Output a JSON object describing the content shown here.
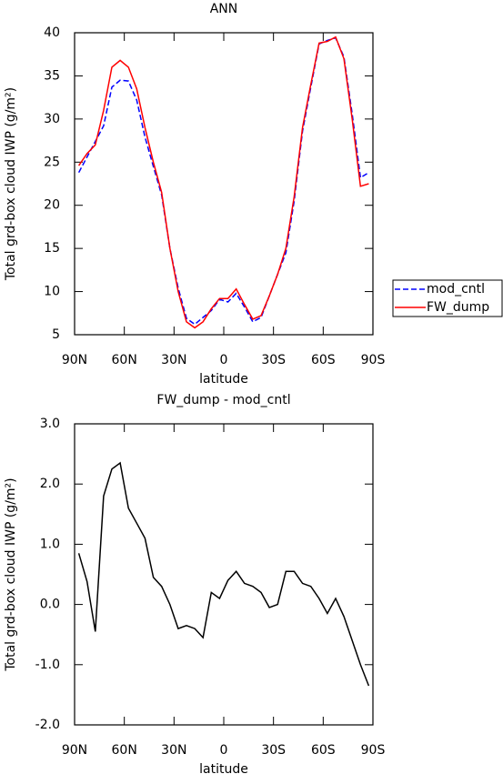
{
  "chart_data": [
    {
      "type": "line",
      "title": "ANN",
      "xlabel": "latitude",
      "ylabel": "Total grd-box cloud IWP (g/m²)",
      "x": [
        87.5,
        82.5,
        77.5,
        72.5,
        67.5,
        62.5,
        57.5,
        52.5,
        47.5,
        42.5,
        37.5,
        32.5,
        27.5,
        22.5,
        17.5,
        12.5,
        7.5,
        2.5,
        -2.5,
        -7.5,
        -12.5,
        -17.5,
        -22.5,
        -27.5,
        -32.5,
        -37.5,
        -42.5,
        -47.5,
        -52.5,
        -57.5,
        -62.5,
        -67.5,
        -72.5,
        -77.5,
        -82.5,
        -87.5
      ],
      "series": [
        {
          "name": "mod_cntl",
          "color": "#0000ff",
          "linestyle": "dashed",
          "values": [
            23.8,
            25.6,
            27.4,
            29.2,
            33.7,
            34.5,
            34.4,
            32.2,
            27.9,
            24.5,
            21.2,
            15.0,
            10.4,
            6.9,
            6.2,
            7.0,
            7.8,
            9.1,
            8.8,
            9.8,
            8.2,
            6.5,
            7.0,
            9.5,
            12.0,
            14.5,
            20.5,
            28.6,
            33.7,
            38.7,
            39.1,
            39.4,
            37.2,
            30.6,
            23.2,
            23.8
          ]
        },
        {
          "name": "FW_dump",
          "color": "#ff0000",
          "linestyle": "solid",
          "values": [
            24.6,
            26.0,
            27.0,
            31.0,
            36.0,
            36.8,
            36.0,
            33.5,
            29.0,
            25.0,
            21.5,
            15.0,
            10.0,
            6.5,
            5.8,
            6.5,
            8.0,
            9.2,
            9.2,
            10.3,
            8.5,
            6.8,
            7.2,
            9.5,
            12.0,
            15.0,
            21.0,
            29.0,
            34.0,
            38.8,
            39.0,
            39.5,
            37.0,
            30.0,
            22.2,
            22.5
          ]
        }
      ],
      "xlim": [
        90,
        -90
      ],
      "xticks": [
        {
          "value": 90,
          "label": "90N"
        },
        {
          "value": 60,
          "label": "60N"
        },
        {
          "value": 30,
          "label": "30N"
        },
        0,
        {
          "value": -30,
          "label": "30S"
        },
        {
          "value": -60,
          "label": "60S"
        },
        {
          "value": -90,
          "label": "90S"
        }
      ],
      "ylim": [
        5,
        40
      ],
      "yticks": [
        5,
        10,
        15,
        20,
        25,
        30,
        35,
        40
      ],
      "legend": "right"
    },
    {
      "type": "line",
      "title": "FW_dump - mod_cntl",
      "xlabel": "latitude",
      "ylabel": "Total grd-box cloud IWP (g/m²)",
      "x": [
        87.5,
        82.5,
        77.5,
        72.5,
        67.5,
        62.5,
        57.5,
        52.5,
        47.5,
        42.5,
        37.5,
        32.5,
        27.5,
        22.5,
        17.5,
        12.5,
        7.5,
        2.5,
        -2.5,
        -7.5,
        -12.5,
        -17.5,
        -22.5,
        -27.5,
        -32.5,
        -37.5,
        -42.5,
        -47.5,
        -52.5,
        -57.5,
        -62.5,
        -67.5,
        -72.5,
        -77.5,
        -82.5,
        -87.5
      ],
      "series": [
        {
          "name": "FW_dump - mod_cntl",
          "color": "#000000",
          "linestyle": "solid",
          "values": [
            0.85,
            0.38,
            -0.45,
            1.8,
            2.25,
            2.35,
            1.6,
            1.35,
            1.1,
            0.45,
            0.3,
            0.0,
            -0.4,
            -0.35,
            -0.4,
            -0.55,
            0.2,
            0.1,
            0.4,
            0.55,
            0.35,
            0.3,
            0.2,
            -0.05,
            0.0,
            0.55,
            0.55,
            0.35,
            0.3,
            0.1,
            -0.15,
            0.1,
            -0.2,
            -0.6,
            -1.0,
            -1.35
          ]
        }
      ],
      "xlim": [
        90,
        -90
      ],
      "xticks": [
        {
          "value": 90,
          "label": "90N"
        },
        {
          "value": 60,
          "label": "60N"
        },
        {
          "value": 30,
          "label": "30N"
        },
        0,
        {
          "value": -30,
          "label": "30S"
        },
        {
          "value": -60,
          "label": "60S"
        },
        {
          "value": -90,
          "label": "90S"
        }
      ],
      "ylim": [
        -2,
        3
      ],
      "yticks": [
        {
          "value": -2,
          "label": "-2.0"
        },
        {
          "value": -1,
          "label": "-1.0"
        },
        {
          "value": 0,
          "label": "0.0"
        },
        {
          "value": 1,
          "label": "1.0"
        },
        {
          "value": 2,
          "label": "2.0"
        },
        {
          "value": 3,
          "label": "3.0"
        }
      ]
    }
  ]
}
